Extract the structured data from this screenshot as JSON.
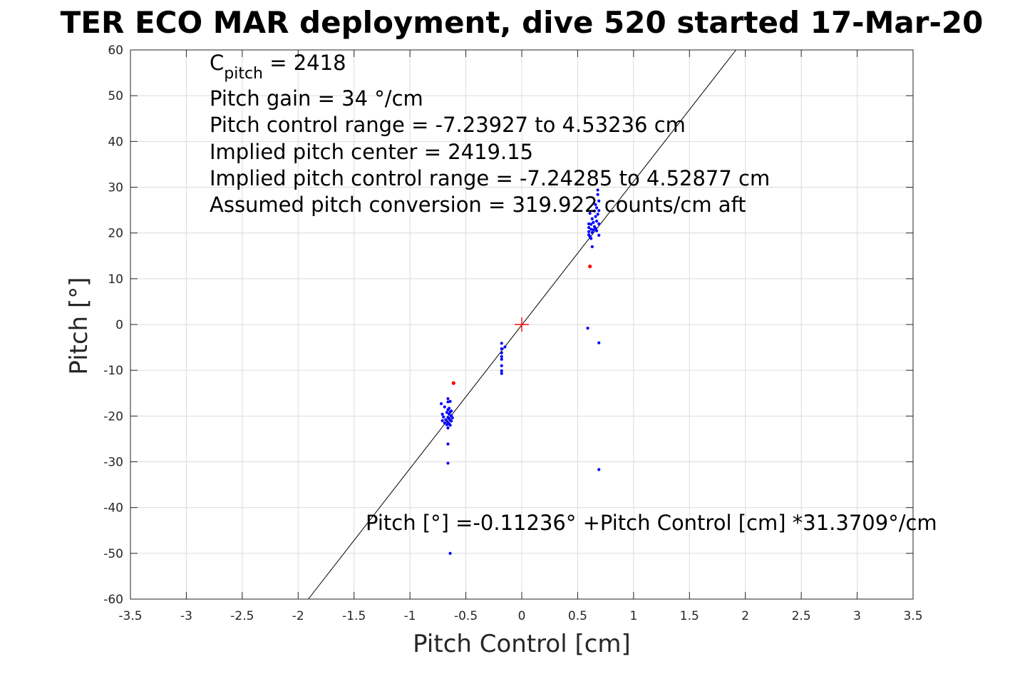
{
  "chart_data": {
    "type": "scatter",
    "title": "TER ECO MAR deployment, dive 520 started 17-Mar-20",
    "xlabel": "Pitch Control [cm]",
    "ylabel": "Pitch [°]",
    "xlim": [
      -3.5,
      3.5
    ],
    "ylim": [
      -60,
      60
    ],
    "x_ticks": [
      -3.5,
      -3,
      -2.5,
      -2,
      -1.5,
      -1,
      -0.5,
      0,
      0.5,
      1,
      1.5,
      2,
      2.5,
      3,
      3.5
    ],
    "x_tick_labels": [
      "-3.5",
      "-3",
      "-2.5",
      "-2",
      "-1.5",
      "-1",
      "-0.5",
      "0",
      "0.5",
      "1",
      "1.5",
      "2",
      "2.5",
      "3",
      "3.5"
    ],
    "y_ticks": [
      60,
      50,
      40,
      30,
      20,
      10,
      0,
      -10,
      -20,
      -30,
      -40,
      -50,
      -60
    ],
    "y_tick_labels": [
      "60",
      "50",
      "40",
      "30",
      "20",
      "10",
      "0",
      "-10",
      "-20",
      "-30",
      "-40",
      "-50",
      "-60"
    ],
    "grid": true,
    "colors": {
      "samples": "#0000ff",
      "highlight": "#ff0000",
      "fit": "#000000",
      "grid": "#dcdcdc"
    },
    "fit_line": {
      "intercept": -0.11236,
      "slope": 31.3709
    },
    "center_marker": {
      "x": 0,
      "y": 0,
      "color": "#ff0000",
      "symbol": "plus"
    },
    "annotations": {
      "c_pitch_prefix": "C",
      "c_pitch_sub": "pitch",
      "c_pitch_value": " = 2418",
      "lines": [
        "Pitch gain = 34 °/cm",
        "Pitch control range = -7.23927 to 4.53236 cm",
        "Implied pitch center = 2419.15",
        "Implied pitch control range = -7.24285 to 4.52877 cm",
        "Assumed pitch conversion = 319.922 counts/cm aft"
      ],
      "fit_equation": "Pitch [°] =-0.11236° +Pitch Control [cm] *31.3709°/cm"
    },
    "series": [
      {
        "color": "#0000ff",
        "points": [
          [
            -0.72,
            -17.3
          ],
          [
            -0.71,
            -19.6
          ],
          [
            -0.71,
            -21.0
          ],
          [
            -0.7,
            -20.2
          ],
          [
            -0.69,
            -18.0
          ],
          [
            -0.69,
            -21.5
          ],
          [
            -0.68,
            -20.8
          ],
          [
            -0.67,
            -19.2
          ],
          [
            -0.67,
            -21.9
          ],
          [
            -0.66,
            -16.2
          ],
          [
            -0.66,
            -16.9
          ],
          [
            -0.66,
            -18.6
          ],
          [
            -0.66,
            -20.3
          ],
          [
            -0.66,
            -21.4
          ],
          [
            -0.66,
            -22.6
          ],
          [
            -0.66,
            -26.1
          ],
          [
            -0.66,
            -30.3
          ],
          [
            -0.65,
            -19.6
          ],
          [
            -0.65,
            -20.5
          ],
          [
            -0.65,
            -21.7
          ],
          [
            -0.65,
            -18.3
          ],
          [
            -0.64,
            -19.1
          ],
          [
            -0.64,
            -20.9
          ],
          [
            -0.64,
            -22.0
          ],
          [
            -0.64,
            -16.8
          ],
          [
            -0.63,
            -18.9
          ],
          [
            -0.63,
            -21.1
          ],
          [
            -0.63,
            -19.9
          ],
          [
            -0.62,
            -20.4
          ],
          [
            -0.64,
            -50.0
          ],
          [
            -0.18,
            -4.1
          ],
          [
            -0.18,
            -5.3
          ],
          [
            -0.18,
            -6.2
          ],
          [
            -0.18,
            -7.0
          ],
          [
            -0.18,
            -7.6
          ],
          [
            -0.18,
            -9.0
          ],
          [
            -0.18,
            -10.1
          ],
          [
            -0.18,
            -10.7
          ],
          [
            -0.15,
            -4.9
          ],
          [
            0.59,
            -0.8
          ],
          [
            0.6,
            19.6
          ],
          [
            0.6,
            20.3
          ],
          [
            0.6,
            21.2
          ],
          [
            0.6,
            22.0
          ],
          [
            0.61,
            19.2
          ],
          [
            0.61,
            24.3
          ],
          [
            0.62,
            20.8
          ],
          [
            0.62,
            21.9
          ],
          [
            0.62,
            18.8
          ],
          [
            0.63,
            23.1
          ],
          [
            0.63,
            17.0
          ],
          [
            0.63,
            20.1
          ],
          [
            0.64,
            22.3
          ],
          [
            0.64,
            20.7
          ],
          [
            0.65,
            21.4
          ],
          [
            0.65,
            24.8
          ],
          [
            0.66,
            21.0
          ],
          [
            0.66,
            23.6
          ],
          [
            0.66,
            26.2
          ],
          [
            0.67,
            20.5
          ],
          [
            0.67,
            22.6
          ],
          [
            0.67,
            25.5
          ],
          [
            0.68,
            24.1
          ],
          [
            0.68,
            28.4
          ],
          [
            0.68,
            29.4
          ],
          [
            0.69,
            22.0
          ],
          [
            0.69,
            24.9
          ],
          [
            0.69,
            27.0
          ],
          [
            0.69,
            19.5
          ],
          [
            0.69,
            -4.0
          ],
          [
            0.69,
            -31.7
          ]
        ]
      },
      {
        "color": "#ff0000",
        "points": [
          [
            -0.61,
            -12.8
          ],
          [
            0.61,
            12.7
          ]
        ]
      }
    ]
  }
}
